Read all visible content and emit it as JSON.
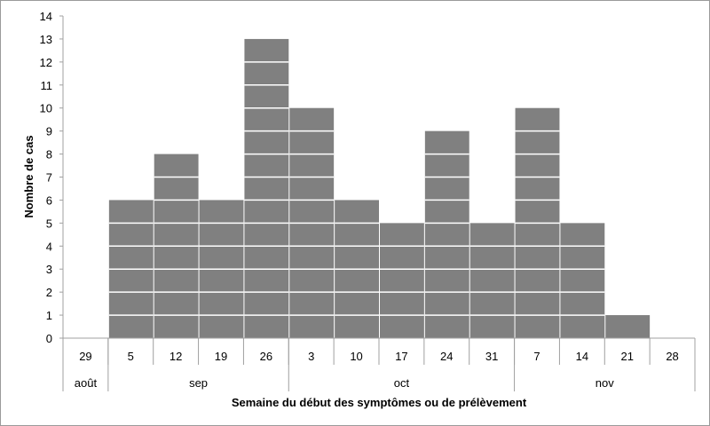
{
  "chart_data": {
    "type": "bar",
    "title": "",
    "xlabel": "Semaine du début des symptômes ou de prélèvement",
    "ylabel": "Nombre de cas",
    "ylim": [
      0,
      14
    ],
    "yticks": [
      0,
      1,
      2,
      3,
      4,
      5,
      6,
      7,
      8,
      9,
      10,
      11,
      12,
      13,
      14
    ],
    "grid": false,
    "legend": "none",
    "bar_color": "#808080",
    "categories": [
      "29",
      "5",
      "12",
      "19",
      "26",
      "3",
      "10",
      "17",
      "24",
      "31",
      "7",
      "14",
      "21",
      "28"
    ],
    "months": [
      {
        "label": "août",
        "span": 1
      },
      {
        "label": "sep",
        "span": 4
      },
      {
        "label": "oct",
        "span": 5
      },
      {
        "label": "nov",
        "span": 4
      }
    ],
    "values": [
      0,
      6,
      8,
      6,
      13,
      10,
      6,
      5,
      9,
      5,
      10,
      5,
      1,
      0
    ]
  }
}
